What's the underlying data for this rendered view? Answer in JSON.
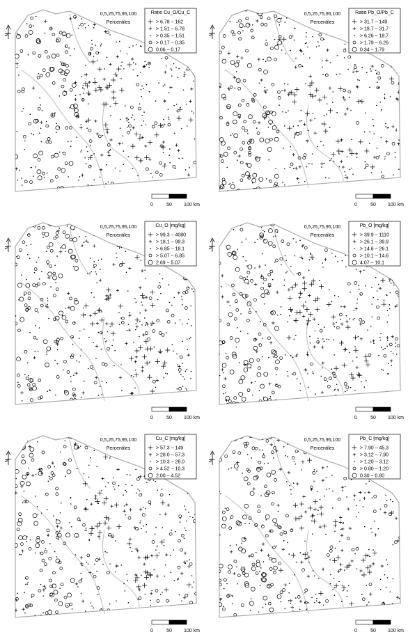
{
  "panels": [
    {
      "title": "Ratio Cu_O/Cu_C",
      "percentile_label": "0,5,25,75,95,100",
      "percentile_caption": "Percentiles",
      "classes": [
        "> 6.78 – 162",
        "> 1.51 – 6.78",
        "> 0.35 – 1.51",
        "> 0.17 – 0.35",
        "0.06 – 0.17"
      ],
      "scale_labels": [
        "0",
        "50",
        "100 km"
      ],
      "north": "N"
    },
    {
      "title": "Ratio Pb_O/Pb_C",
      "percentile_label": "0,5,25,75,95,100",
      "percentile_caption": "Percentiles",
      "classes": [
        "> 31.7 – 149",
        "> 18.7 – 31.7",
        "> 6.26 – 18.7",
        "> 1.79 – 6.26",
        "0.34 – 1.79"
      ],
      "scale_labels": [
        "0",
        "50",
        "100 km"
      ],
      "north": "N"
    },
    {
      "title": "Cu_O [mg/kg]",
      "percentile_label": "0,5,25,75,95,100",
      "percentile_caption": "Percentiles",
      "classes": [
        "> 99.3 – 4080",
        "> 18.1 – 99.3",
        "> 6.85 – 18.1",
        "> 5.07 – 6.85",
        "2.69 – 5.07"
      ],
      "scale_labels": [
        "0",
        "50",
        "100 km"
      ],
      "north": "N"
    },
    {
      "title": "Pb_O [mg/kg]",
      "percentile_label": "0,5,25,75,95,100",
      "percentile_caption": "Percentiles",
      "classes": [
        "> 39.9 – 1110",
        "> 26.1 – 39.9",
        "> 14.6 – 26.1",
        "> 10.1 – 14.6",
        "4.07 – 10.1"
      ],
      "scale_labels": [
        "0",
        "50",
        "100 km"
      ],
      "north": "N"
    },
    {
      "title": "Cu_C [mg/kg]",
      "percentile_label": "0,5,25,75,95,100",
      "percentile_caption": "Percentiles",
      "classes": [
        "> 57.3 – 149",
        "> 28.0 – 57.3",
        "> 10.3 – 28.0",
        "> 4.52 – 10.3",
        "2.00 – 4.52"
      ],
      "scale_labels": [
        "0",
        "50",
        "100 km"
      ],
      "north": "N"
    },
    {
      "title": "Pb_C [mg/kg]",
      "percentile_label": "0,5,25,75,95,100",
      "percentile_caption": "Percentiles",
      "classes": [
        "> 7.90 – 45.3",
        "> 3.12 – 7.90",
        "> 1.20 – 3.12",
        "> 0.80 – 1.20",
        "0.30 – 0.80"
      ],
      "scale_labels": [
        "0",
        "50",
        "100 km"
      ],
      "north": "N"
    }
  ]
}
